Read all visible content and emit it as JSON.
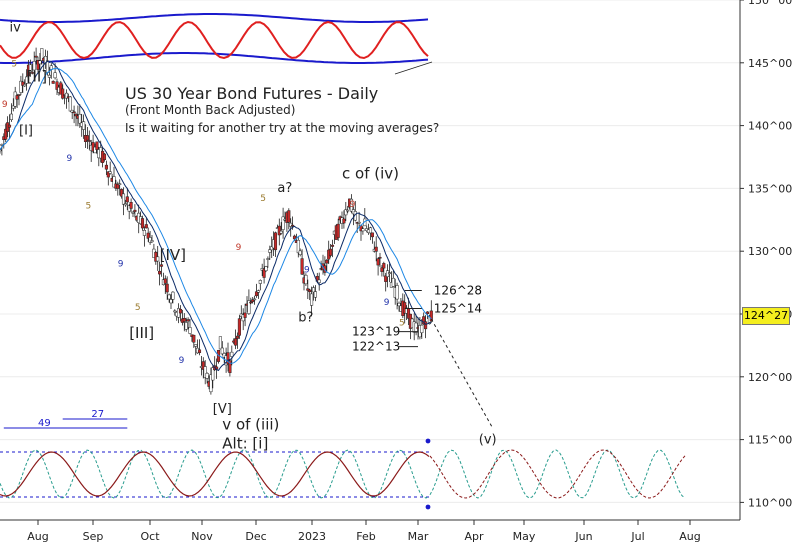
{
  "chart_data": {
    "type": "candlestick",
    "title": "US 30 Year Bond Futures - Daily",
    "subtitle": "(Front Month Back Adjusted)",
    "note": "Is it waiting for another try at the moving averages?",
    "last_price": "124^27",
    "y_ticks": [
      {
        "v": 110,
        "label": "110^00"
      },
      {
        "v": 115,
        "label": "115^00"
      },
      {
        "v": 120,
        "label": "120^00"
      },
      {
        "v": 125,
        "label": "125^00"
      },
      {
        "v": 130,
        "label": "130^00"
      },
      {
        "v": 135,
        "label": "135^00"
      },
      {
        "v": 140,
        "label": "140^00"
      },
      {
        "v": 145,
        "label": "145^00"
      },
      {
        "v": 150,
        "label": "150^00"
      }
    ],
    "x_ticks": [
      "Aug",
      "Sep",
      "Oct",
      "Nov",
      "Dec",
      "2023",
      "Feb",
      "Mar",
      "Apr",
      "May",
      "Jun",
      "Jul",
      "Aug"
    ],
    "price_path": [
      [
        0,
        138
      ],
      [
        8,
        142
      ],
      [
        14,
        144
      ],
      [
        22,
        145.5
      ],
      [
        30,
        143.5
      ],
      [
        38,
        141.5
      ],
      [
        46,
        139
      ],
      [
        54,
        137.5
      ],
      [
        62,
        135
      ],
      [
        70,
        133
      ],
      [
        78,
        131.5
      ],
      [
        86,
        128
      ],
      [
        94,
        125
      ],
      [
        100,
        124
      ],
      [
        106,
        121
      ],
      [
        111,
        119.5
      ],
      [
        116,
        122.5
      ],
      [
        121,
        121
      ],
      [
        126,
        124
      ],
      [
        132,
        126
      ],
      [
        138,
        128
      ],
      [
        143,
        130
      ],
      [
        148,
        132
      ],
      [
        152,
        133
      ],
      [
        156,
        131
      ],
      [
        160,
        128
      ],
      [
        164,
        126
      ],
      [
        168,
        128
      ],
      [
        172,
        129
      ],
      [
        176,
        131
      ],
      [
        180,
        132.5
      ],
      [
        184,
        134
      ],
      [
        188,
        132
      ],
      [
        192,
        132
      ],
      [
        196,
        131
      ],
      [
        200,
        129
      ],
      [
        204,
        128
      ],
      [
        208,
        127
      ],
      [
        212,
        125.5
      ],
      [
        216,
        124.5
      ],
      [
        220,
        123.5
      ],
      [
        224,
        124.5
      ],
      [
        227,
        124.8
      ]
    ],
    "wave_labels": [
      {
        "text": "iv",
        "bar": 5,
        "price": 147.5,
        "color": "#222"
      },
      {
        "text": "[II]",
        "bar": 14,
        "price": 143.5,
        "color": "#222"
      },
      {
        "text": "[I]",
        "bar": 10,
        "price": 139.3,
        "color": "#222"
      },
      {
        "text": "[IV]",
        "bar": 84,
        "price": 129.3,
        "color": "#222"
      },
      {
        "text": "[III]",
        "bar": 68,
        "price": 123.1,
        "color": "#222"
      },
      {
        "text": "[V]",
        "bar": 112,
        "price": 117.1,
        "color": "#222"
      },
      {
        "text": "a?",
        "bar": 146,
        "price": 134.7,
        "color": "#222"
      },
      {
        "text": "b?",
        "bar": 157,
        "price": 124.4,
        "color": "#222"
      },
      {
        "text": "c of (iv)",
        "bar": 180,
        "price": 135.8,
        "color": "#222"
      },
      {
        "text": "v of (iii)",
        "bar": 117,
        "price": 115.8,
        "color": "#222"
      },
      {
        "text": "Alt: [i]",
        "bar": 117,
        "price": 114.3,
        "color": "#222"
      },
      {
        "text": "(v)",
        "bar": 252,
        "price": 114.7,
        "color": "#222"
      }
    ],
    "count_labels": [
      {
        "text": "5",
        "bar": 6,
        "price": 144.7,
        "color": "#9a7a2e"
      },
      {
        "text": "9",
        "bar": 1,
        "price": 141.5,
        "color": "#c0392b"
      },
      {
        "text": "9",
        "bar": 35,
        "price": 137.2,
        "color": "#2233aa"
      },
      {
        "text": "5",
        "bar": 45,
        "price": 133.4,
        "color": "#9a7a2e"
      },
      {
        "text": "9",
        "bar": 62,
        "price": 128.8,
        "color": "#2233aa"
      },
      {
        "text": "5",
        "bar": 71,
        "price": 125.3,
        "color": "#9a7a2e"
      },
      {
        "text": "9",
        "bar": 94,
        "price": 121.1,
        "color": "#2233aa"
      },
      {
        "text": "9",
        "bar": 124,
        "price": 130.1,
        "color": "#c0392b"
      },
      {
        "text": "5",
        "bar": 137,
        "price": 134,
        "color": "#9a7a2e"
      },
      {
        "text": "9",
        "bar": 160,
        "price": 128.3,
        "color": "#2233aa"
      },
      {
        "text": "9",
        "bar": 184,
        "price": 133.5,
        "color": "#c0392b"
      },
      {
        "text": "9",
        "bar": 202,
        "price": 125.7,
        "color": "#2233aa"
      },
      {
        "text": "5",
        "bar": 210,
        "price": 124.1,
        "color": "#9a7a2e"
      }
    ],
    "levels": [
      {
        "label": "126^28",
        "price": 126.875,
        "x0": 213,
        "x1": 222
      },
      {
        "label": "125^14",
        "price": 125.4375,
        "x0": 213,
        "x1": 222
      },
      {
        "label": "123^19",
        "price": 123.6,
        "x0": 210,
        "x1": 220
      },
      {
        "label": "122^13",
        "price": 122.4,
        "x0": 210,
        "x1": 220
      }
    ],
    "cycle_labels": [
      {
        "text": "49",
        "bar": 20,
        "x_from": 2,
        "x_to": 67
      },
      {
        "text": "27",
        "bar": 46,
        "x_from": 33,
        "x_to": 67
      }
    ]
  }
}
